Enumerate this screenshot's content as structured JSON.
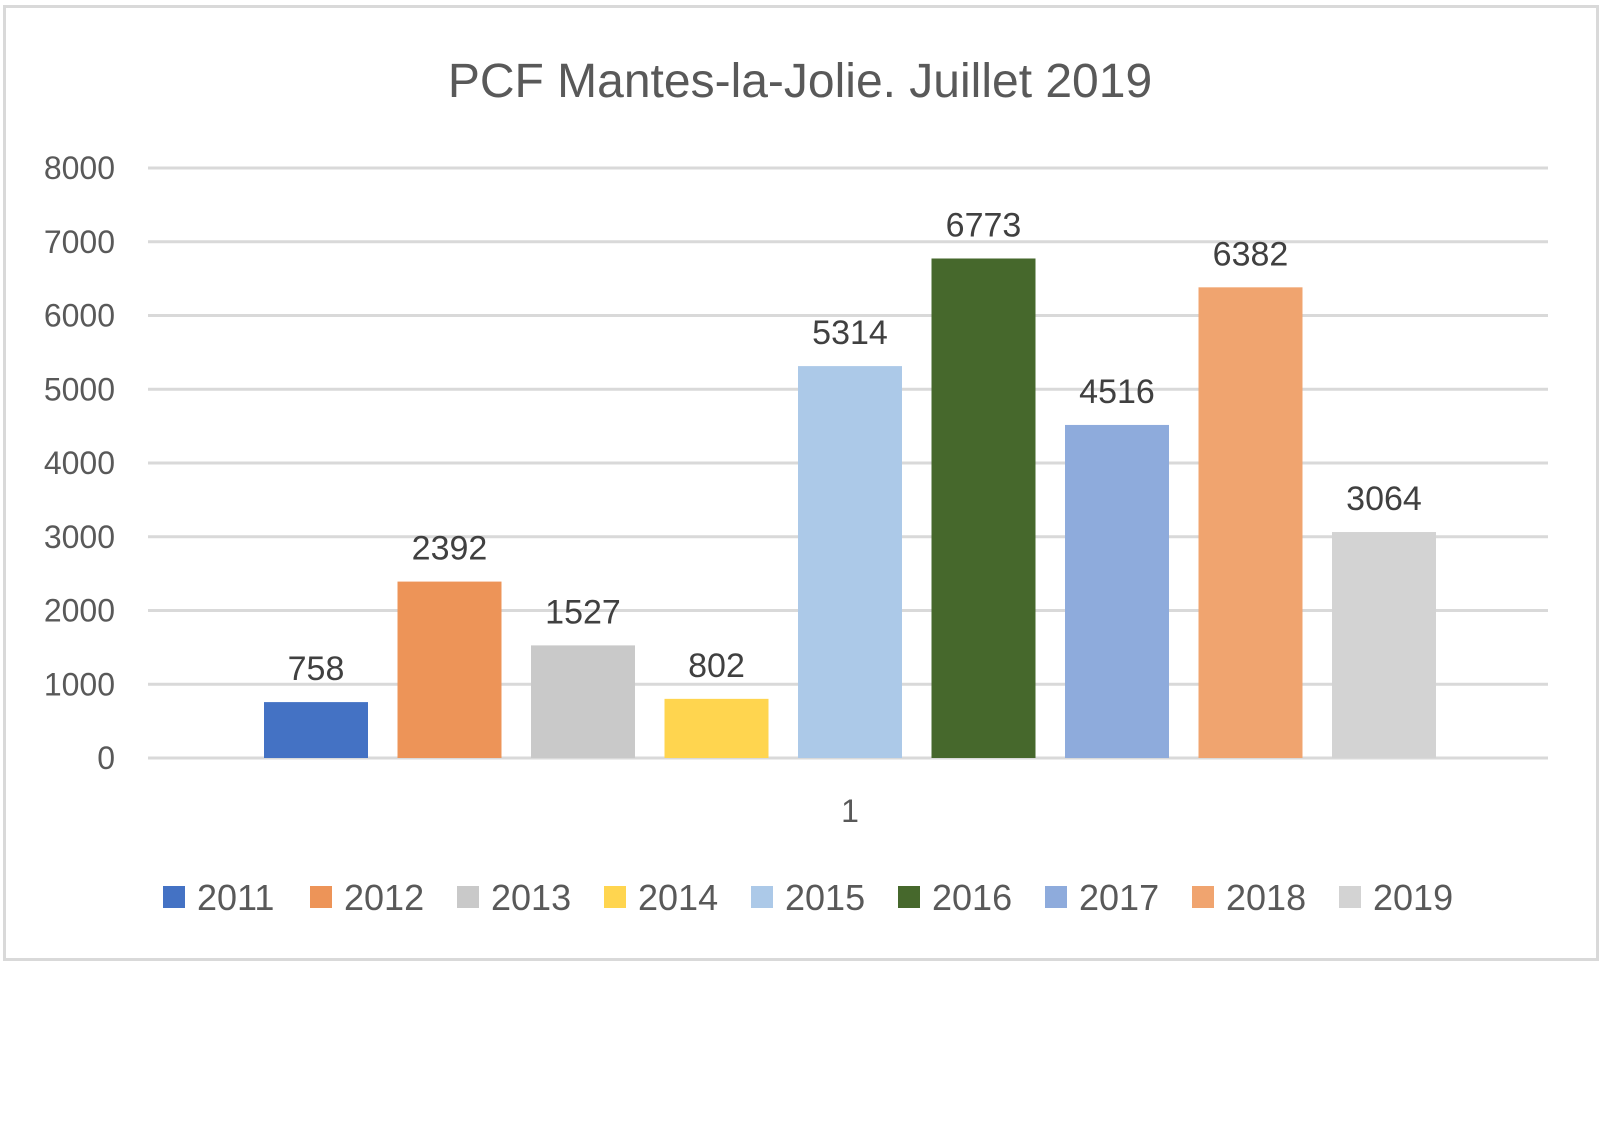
{
  "chart_data": {
    "type": "bar",
    "title": "PCF Mantes-la-Jolie. Juillet 2019",
    "categories": [
      "1"
    ],
    "series": [
      {
        "name": "2011",
        "values": [
          758
        ],
        "color": "#4472c4"
      },
      {
        "name": "2012",
        "values": [
          2392
        ],
        "color": "#ed9458"
      },
      {
        "name": "2013",
        "values": [
          1527
        ],
        "color": "#c9c9c9"
      },
      {
        "name": "2014",
        "values": [
          802
        ],
        "color": "#ffd54f"
      },
      {
        "name": "2015",
        "values": [
          5314
        ],
        "color": "#acc9e8"
      },
      {
        "name": "2016",
        "values": [
          6773
        ],
        "color": "#46682c"
      },
      {
        "name": "2017",
        "values": [
          4516
        ],
        "color": "#8eabdc"
      },
      {
        "name": "2018",
        "values": [
          6382
        ],
        "color": "#f0a46f"
      },
      {
        "name": "2019",
        "values": [
          3064
        ],
        "color": "#d3d3d3"
      }
    ],
    "ylim": [
      0,
      8000
    ],
    "yticks": [
      "0",
      "1000",
      "2000",
      "3000",
      "4000",
      "5000",
      "6000",
      "7000",
      "8000"
    ],
    "grid": true,
    "legend_position": "bottom",
    "data_labels": true,
    "xlabel": "",
    "ylabel": ""
  }
}
